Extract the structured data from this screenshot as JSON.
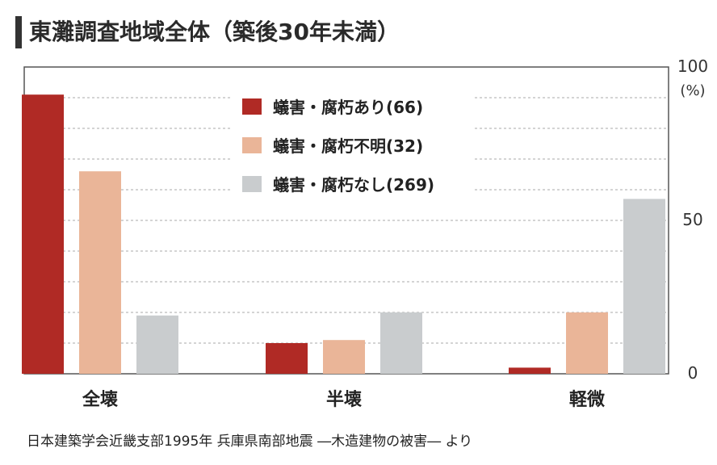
{
  "chart_data": {
    "type": "bar",
    "title": "東灘調査地域全体（築後30年未満）",
    "categories": [
      "全壊",
      "半壊",
      "軽微"
    ],
    "series": [
      {
        "name": "蟻害・腐朽あり(66)",
        "color": "#b02a25",
        "values": [
          91,
          10,
          2
        ]
      },
      {
        "name": "蟻害・腐朽不明(32)",
        "color": "#eab598",
        "values": [
          66,
          11,
          20
        ]
      },
      {
        "name": "蟻害・腐朽なし(269)",
        "color": "#c9ccce",
        "values": [
          19,
          20,
          57
        ]
      }
    ],
    "y_ticks": [
      "0",
      "50",
      "100"
    ],
    "y_unit": "(%)",
    "ylim": [
      0,
      100
    ],
    "grid": "dashed",
    "legend_position": "top-center",
    "source": "日本建築学会近畿支部1995年 兵庫県南部地震 ―木造建物の被害― より"
  }
}
